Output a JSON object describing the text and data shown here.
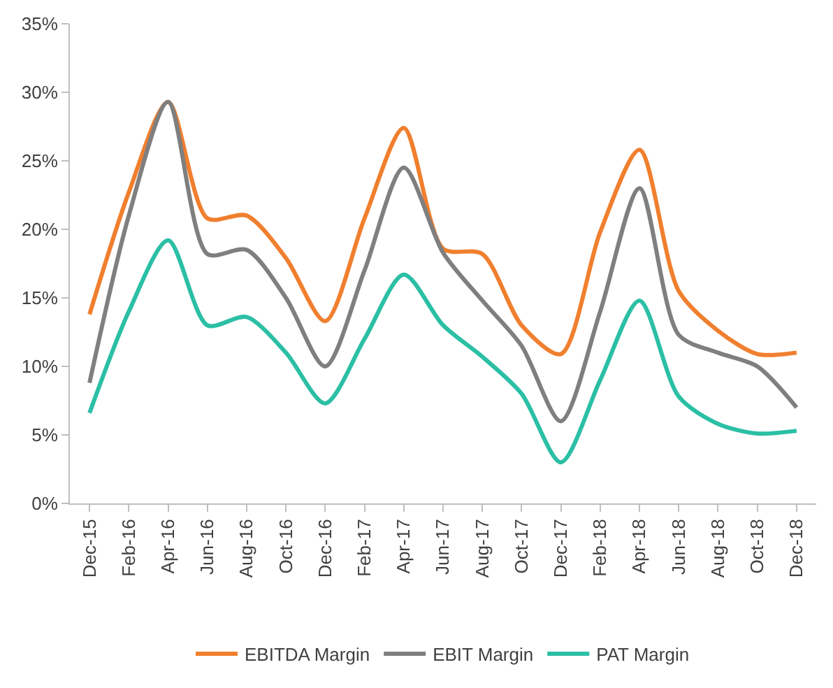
{
  "chart_data": {
    "type": "line",
    "categories": [
      "Dec-15",
      "Feb-16",
      "Apr-16",
      "Jun-16",
      "Aug-16",
      "Oct-16",
      "Dec-16",
      "Feb-17",
      "Apr-17",
      "Jun-17",
      "Aug-17",
      "Oct-17",
      "Dec-17",
      "Feb-18",
      "Apr-18",
      "Jun-18",
      "Aug-18",
      "Oct-18",
      "Dec-18"
    ],
    "series": [
      {
        "name": "EBITDA Margin",
        "color": "#f07f2e",
        "values": [
          13.8,
          22.7,
          29.3,
          20.8,
          21,
          17.9,
          13.3,
          20.8,
          27.4,
          18.6,
          18.2,
          13,
          10.9,
          19.8,
          25.8,
          15.5,
          12.6,
          10.9,
          11
        ]
      },
      {
        "name": "EBIT Margin",
        "color": "#7f7f7f",
        "values": [
          8.8,
          21,
          29.3,
          18.2,
          18.5,
          15,
          10,
          17,
          24.5,
          18.3,
          14.8,
          11.5,
          6,
          14,
          23,
          12.3,
          11,
          10,
          7
        ]
      },
      {
        "name": "PAT Margin",
        "color": "#2bbfa5",
        "values": [
          6.6,
          14,
          19.2,
          13,
          13.6,
          11,
          7.3,
          12,
          16.7,
          13,
          10.7,
          8,
          3,
          9,
          14.8,
          7.8,
          5.8,
          5.1,
          5.3
        ]
      }
    ],
    "ylim": [
      0,
      35
    ],
    "yticks": [
      {
        "value": 0,
        "label": "0%"
      },
      {
        "value": 5,
        "label": "5%"
      },
      {
        "value": 10,
        "label": "10%"
      },
      {
        "value": 15,
        "label": "15%"
      },
      {
        "value": 20,
        "label": "20%"
      },
      {
        "value": 25,
        "label": "25%"
      },
      {
        "value": 30,
        "label": "30%"
      },
      {
        "value": 35,
        "label": "35%"
      }
    ],
    "legend": "bottom",
    "marker": "none",
    "line_style": "solid"
  }
}
